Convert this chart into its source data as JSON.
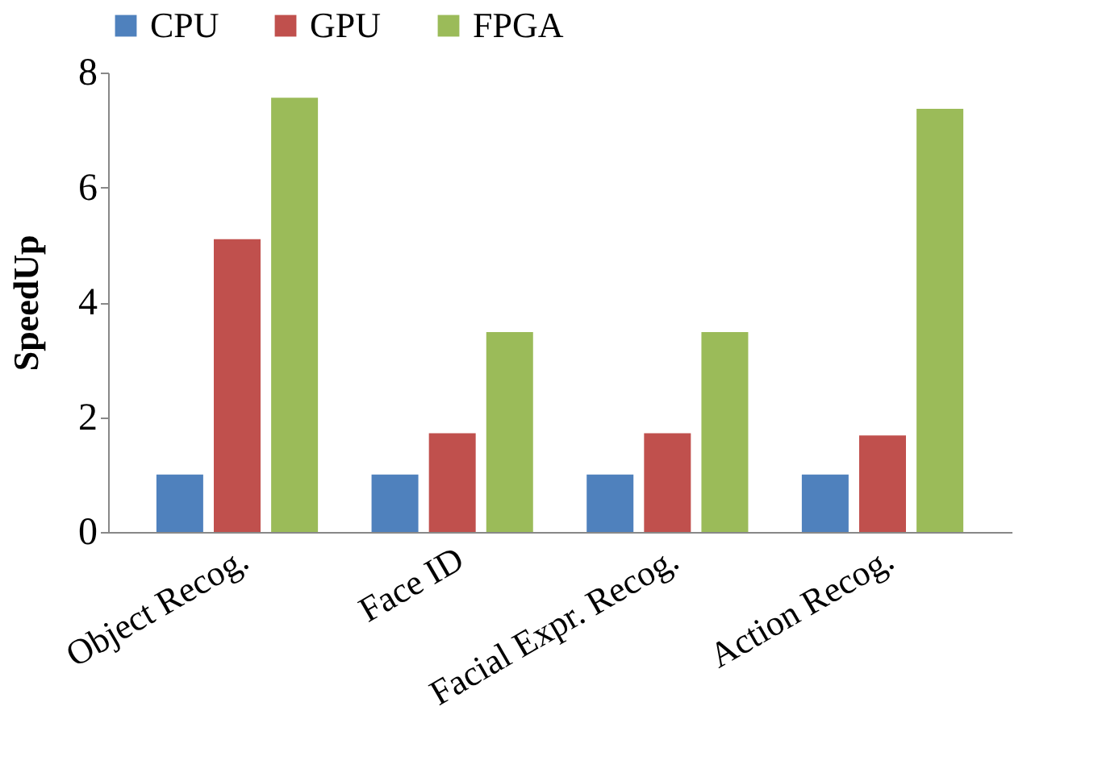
{
  "chart_data": {
    "type": "bar",
    "ylabel": "SpeedUp",
    "categories": [
      "Object Recog.",
      "Face ID",
      "Facial Expr. Recog.",
      "Action Recog."
    ],
    "series": [
      {
        "name": "CPU",
        "color": "#4f81bd",
        "values": [
          1,
          1,
          1,
          1
        ]
      },
      {
        "name": "GPU",
        "color": "#c0504d",
        "values": [
          5.1,
          1.72,
          1.72,
          1.68
        ]
      },
      {
        "name": "FPGA",
        "color": "#9bbb59",
        "values": [
          7.56,
          3.48,
          3.48,
          7.37
        ]
      }
    ],
    "ylim": [
      0,
      8
    ],
    "yticks": [
      0,
      2,
      4,
      6,
      8
    ],
    "grid": false,
    "legend": "top"
  }
}
